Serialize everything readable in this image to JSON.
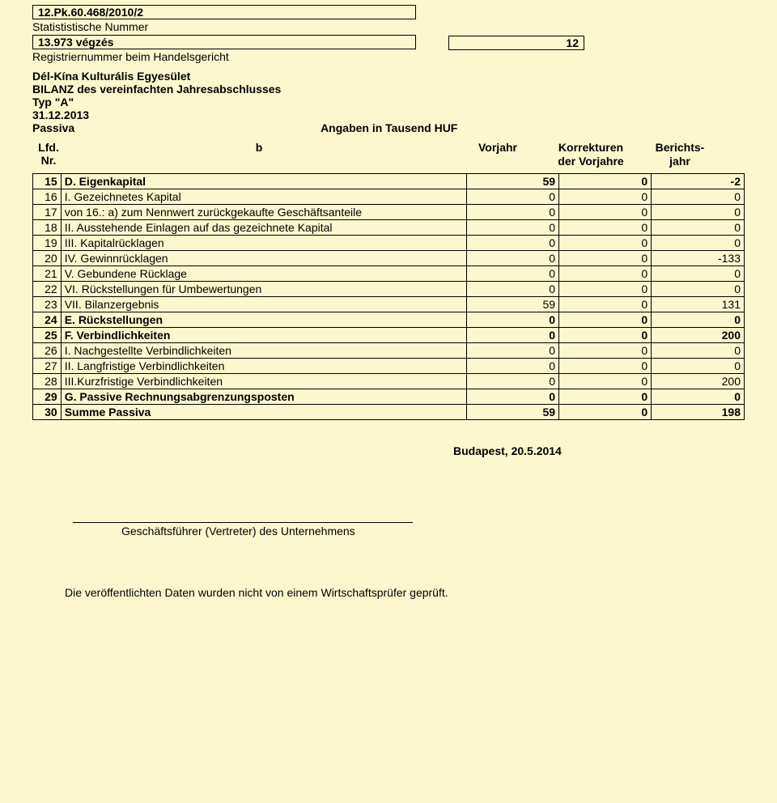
{
  "header": {
    "stat_nr": "12.Pk.60.468/2010/2",
    "stat_label": "Statististische Nummer",
    "reg_nr": "13.973 végzés",
    "reg_label": "Registriernummer beim Handelsgericht",
    "page_num": "12"
  },
  "title": {
    "org": "Dél-Kína Kulturális Egyesület",
    "line2": "BILANZ des vereinfachten Jahresabschlusses",
    "line3": "Typ \"A\"",
    "date": "31.12.2013",
    "section": "Passiva",
    "angaben": "Angaben in Tausend HUF"
  },
  "col_headers": {
    "lfd": "Lfd. Nr.",
    "b": "b",
    "vorjahr": "Vorjahr",
    "korr": "Korrekturen der Vorjahre",
    "bj": "Berichts-jahr"
  },
  "rows": [
    {
      "n": "15",
      "desc": "D. Eigenkapital",
      "v1": "59",
      "v2": "0",
      "v3": "-2",
      "bold": true
    },
    {
      "n": "16",
      "desc": "I.    Gezeichnetes Kapital",
      "v1": "0",
      "v2": "0",
      "v3": "0",
      "bold": false
    },
    {
      "n": "17",
      "desc": "von 16.: a) zum Nennwert zurückgekaufte Geschäftsanteile",
      "v1": "0",
      "v2": "0",
      "v3": "0",
      "bold": false
    },
    {
      "n": "18",
      "desc": "II.    Ausstehende Einlagen auf das gezeichnete Kapital",
      "v1": "0",
      "v2": "0",
      "v3": "0",
      "bold": false
    },
    {
      "n": "19",
      "desc": "III.   Kapitalrücklagen",
      "v1": "0",
      "v2": "0",
      "v3": "0",
      "bold": false
    },
    {
      "n": "20",
      "desc": "IV.  Gewinnrücklagen",
      "v1": "0",
      "v2": "0",
      "v3": "-133",
      "bold": false
    },
    {
      "n": "21",
      "desc": "V.   Gebundene Rücklage",
      "v1": "0",
      "v2": "0",
      "v3": "0",
      "bold": false
    },
    {
      "n": "22",
      "desc": "VI.  Rückstellungen für Umbewertungen",
      "v1": "0",
      "v2": "0",
      "v3": "0",
      "bold": false
    },
    {
      "n": "23",
      "desc": "VII. Bilanzergebnis",
      "v1": "59",
      "v2": "0",
      "v3": "131",
      "bold": false
    },
    {
      "n": "24",
      "desc": "E. Rückstellungen",
      "v1": "0",
      "v2": "0",
      "v3": "0",
      "bold": true
    },
    {
      "n": "25",
      "desc": "F. Verbindlichkeiten",
      "v1": "0",
      "v2": "0",
      "v3": "200",
      "bold": true
    },
    {
      "n": "26",
      "desc": "I. Nachgestellte Verbindlichkeiten",
      "v1": "0",
      "v2": "0",
      "v3": "0",
      "bold": false
    },
    {
      "n": "27",
      "desc": "II. Langfristige Verbindlichkeiten",
      "v1": "0",
      "v2": "0",
      "v3": "0",
      "bold": false
    },
    {
      "n": "28",
      "desc": "III.Kurzfristige Verbindlichkeiten",
      "v1": "0",
      "v2": "0",
      "v3": "200",
      "bold": false
    },
    {
      "n": "29",
      "desc": "G. Passive Rechnungsabgrenzungsposten",
      "v1": "0",
      "v2": "0",
      "v3": "0",
      "bold": true
    },
    {
      "n": "30",
      "desc": "Summe Passiva",
      "v1": "59",
      "v2": "0",
      "v3": "198",
      "bold": true
    }
  ],
  "footer": {
    "place_date": "Budapest,  20.5.2014",
    "sig_label": "Geschäftsführer (Vertreter) des Unternehmens",
    "note": "Die veröffentlichten Daten wurden nicht von einem Wirtschaftsprüfer geprüft."
  },
  "colors": {
    "background": "#fdf7cd",
    "border": "#000000",
    "text": "#000000"
  }
}
